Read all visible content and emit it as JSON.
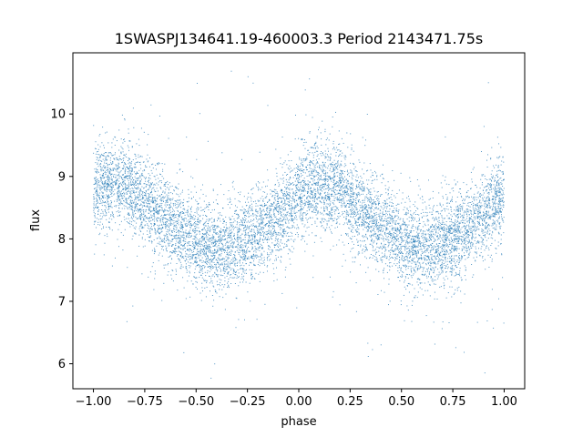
{
  "chart_data": {
    "type": "scatter",
    "title": "1SWASPJ134641.19-460003.3 Period 2143471.75s",
    "xlabel": "phase",
    "ylabel": "flux",
    "xlim": [
      -1.1,
      1.1
    ],
    "ylim": [
      5.6,
      10.98
    ],
    "grid": false,
    "legend": "none",
    "point_color": "#1f77b4",
    "x_ticks": [
      -1.0,
      -0.75,
      -0.5,
      -0.25,
      0.0,
      0.25,
      0.5,
      0.75,
      1.0
    ],
    "x_tick_labels": [
      "−1.00",
      "−0.75",
      "−0.50",
      "−0.25",
      "0.00",
      "0.25",
      "0.50",
      "0.75",
      "1.00"
    ],
    "y_ticks": [
      6,
      7,
      8,
      9,
      10
    ],
    "y_tick_labels": [
      "6",
      "7",
      "8",
      "9",
      "10"
    ],
    "series": [
      {
        "x": [
          -1.0,
          -0.9,
          -0.8,
          -0.7,
          -0.6,
          -0.5,
          -0.4,
          -0.3,
          -0.2,
          -0.1,
          0.0,
          0.1,
          0.2,
          0.3,
          0.4,
          0.5,
          0.6,
          0.7,
          0.8,
          0.9,
          1.0
        ],
        "y": [
          8.8,
          8.9,
          8.75,
          8.45,
          8.2,
          8.0,
          7.85,
          7.9,
          8.1,
          8.35,
          8.7,
          8.9,
          8.75,
          8.45,
          8.2,
          8.0,
          7.85,
          7.9,
          8.1,
          8.35,
          8.7
        ],
        "scatter_sd": 0.35
      }
    ]
  }
}
